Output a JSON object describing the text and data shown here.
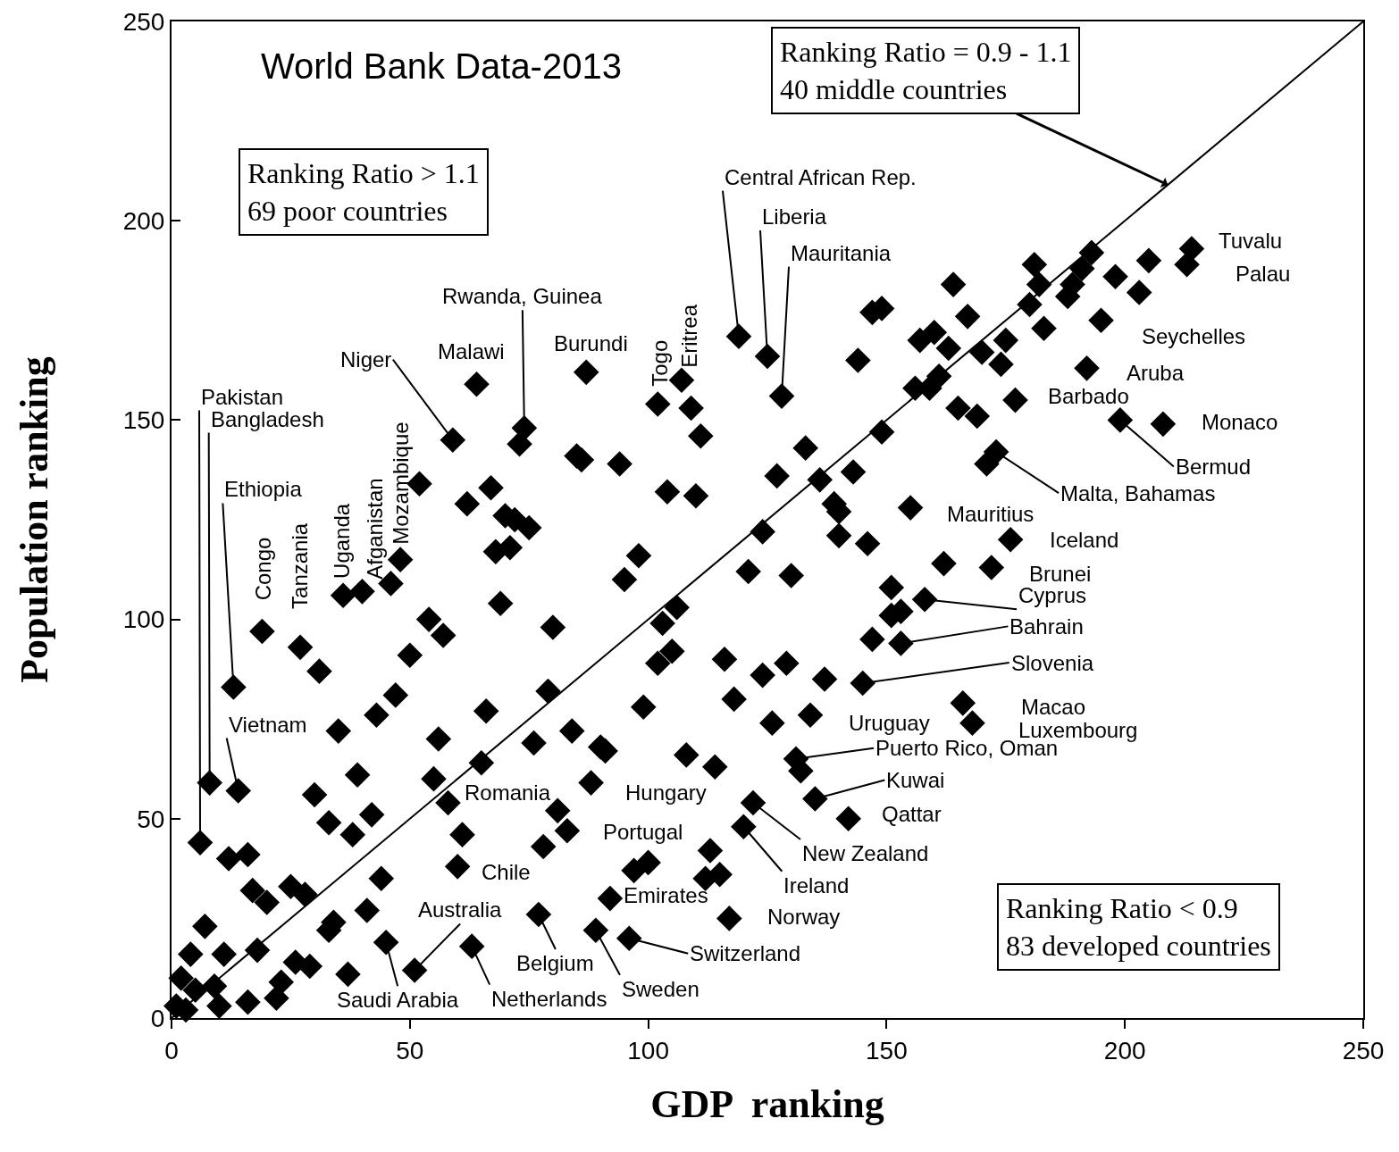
{
  "chart_data": {
    "type": "scatter",
    "xlabel": "GDP  ranking",
    "ylabel": "Population ranking",
    "xlim": [
      0,
      250
    ],
    "ylim": [
      0,
      250
    ],
    "xticks": [
      0,
      50,
      100,
      150,
      200,
      250
    ],
    "yticks": [
      0,
      50,
      100,
      150,
      200,
      250
    ],
    "grid": false,
    "marker": "diamond",
    "series": [
      {
        "color": "#000000",
        "x": [
          64,
          87,
          59,
          74,
          73,
          86,
          85,
          94,
          102,
          107,
          109,
          111,
          104,
          110,
          52,
          67,
          62,
          70,
          72,
          75,
          68,
          71,
          48,
          46,
          36,
          40,
          98,
          95,
          69,
          80,
          106,
          103,
          102,
          105,
          116,
          124,
          19,
          27,
          31,
          54,
          57,
          50,
          13,
          47,
          43,
          35,
          66,
          99,
          118,
          79,
          56,
          76,
          84,
          90,
          91,
          108,
          114,
          39,
          55,
          65,
          8,
          14,
          30,
          42,
          33,
          38,
          58,
          88,
          81,
          83,
          78,
          61,
          60,
          97,
          100,
          113,
          112,
          115,
          6,
          12,
          16,
          17,
          20,
          25,
          28,
          44,
          41,
          34,
          33,
          7,
          4,
          11,
          18,
          26,
          29,
          45,
          37,
          51,
          63,
          77,
          89,
          96,
          92,
          117,
          2,
          5,
          9,
          3,
          1,
          10,
          16,
          22,
          23,
          129,
          137,
          145,
          147,
          153,
          151,
          153,
          166,
          168,
          126,
          134,
          131,
          132,
          135,
          142,
          122,
          120,
          214,
          213,
          205,
          198,
          203,
          195,
          192,
          177,
          199,
          208,
          173,
          171,
          164,
          167,
          149,
          147,
          181,
          182,
          180,
          193,
          191,
          189,
          188,
          183,
          175,
          174,
          170,
          163,
          160,
          157,
          144,
          119,
          125,
          128,
          161,
          156,
          159,
          165,
          169,
          149,
          133,
          127,
          136,
          143,
          139,
          140,
          140,
          146,
          155,
          124,
          121,
          130,
          176,
          162,
          172,
          151,
          158
        ],
        "values": [
          159,
          162,
          145,
          148,
          144,
          140,
          141,
          139,
          154,
          160,
          153,
          146,
          132,
          131,
          134,
          133,
          129,
          126,
          125,
          123,
          117,
          118,
          115,
          109,
          106,
          107,
          116,
          110,
          104,
          98,
          103,
          99,
          89,
          92,
          90,
          86,
          97,
          93,
          87,
          100,
          96,
          91,
          83,
          81,
          76,
          72,
          77,
          78,
          80,
          82,
          70,
          69,
          72,
          68,
          67,
          66,
          63,
          61,
          60,
          64,
          59,
          57,
          56,
          51,
          49,
          46,
          54,
          59,
          52,
          47,
          43,
          46,
          38,
          37,
          39,
          42,
          35,
          36,
          44,
          40,
          41,
          32,
          29,
          33,
          31,
          35,
          27,
          24,
          22,
          23,
          16,
          16,
          17,
          14,
          13,
          19,
          11,
          12,
          18,
          26,
          22,
          20,
          30,
          25,
          10,
          7,
          8,
          2,
          3,
          3,
          4,
          5,
          9,
          89,
          85,
          84,
          95,
          94,
          101,
          102,
          79,
          74,
          74,
          76,
          65,
          62,
          55,
          50,
          54,
          48,
          193,
          189,
          190,
          186,
          182,
          175,
          163,
          155,
          150,
          149,
          142,
          139,
          184,
          176,
          178,
          177,
          189,
          184,
          179,
          192,
          188,
          184,
          181,
          173,
          170,
          164,
          167,
          168,
          172,
          170,
          165,
          171,
          166,
          156,
          161,
          158,
          158,
          153,
          151,
          147,
          143,
          136,
          135,
          137,
          129,
          127,
          121,
          119,
          128,
          122,
          112,
          111,
          120,
          114,
          113,
          108,
          105
        ]
      },
      {
        "type": "line",
        "color": "#000000",
        "marker": "none",
        "x": [
          0,
          250
        ],
        "values": [
          0,
          250
        ]
      }
    ],
    "annotations": [
      "World Bank Data-2013",
      "Ranking Ratio > 1.1\n69 poor countries",
      {
        "text": "Ranking Ratio = 0.9 - 1.1\n40 middle countries",
        "x": 209,
        "y": 209
      },
      "Ranking Ratio < 0.9\n83 developed countries",
      {
        "text": "Pakistan",
        "x": 6,
        "y": 44
      },
      {
        "text": "Bangladesh",
        "x": 8,
        "y": 59
      },
      {
        "text": "Ethiopia",
        "x": 13,
        "y": 83
      },
      {
        "text": "Vietnam",
        "x": 14,
        "y": 57
      },
      {
        "text": "Niger",
        "x": 59,
        "y": 145
      },
      {
        "text": "Rwanda, Guinea",
        "x": 74,
        "y": 148
      },
      {
        "text": "Central African Rep.",
        "x": 119,
        "y": 171
      },
      {
        "text": "Liberia",
        "x": 125,
        "y": 166
      },
      {
        "text": "Mauritania",
        "x": 128,
        "y": 156
      },
      {
        "text": "Bermud",
        "x": 199,
        "y": 150
      },
      {
        "text": "Malta, Bahamas",
        "x": 173,
        "y": 142
      },
      {
        "text": "Cyprus",
        "x": 158,
        "y": 105
      },
      {
        "text": "Bahrain",
        "x": 153,
        "y": 94
      },
      {
        "text": "Slovenia",
        "x": 145,
        "y": 84
      },
      {
        "text": "Puerto Rico, Oman",
        "x": 131,
        "y": 65
      },
      {
        "text": "Kuwai",
        "x": 135,
        "y": 55
      },
      {
        "text": "New Zealand",
        "x": 122,
        "y": 54
      },
      {
        "text": "Ireland",
        "x": 120,
        "y": 48
      },
      {
        "text": "Switzerland",
        "x": 96,
        "y": 20
      },
      {
        "text": "Sweden",
        "x": 89,
        "y": 22
      },
      {
        "text": "Belgium",
        "x": 77,
        "y": 26
      },
      {
        "text": "Netherlands",
        "x": 63,
        "y": 18
      },
      {
        "text": "Saudi Arabia",
        "x": 45,
        "y": 19
      },
      {
        "text": "Australia",
        "x": 51,
        "y": 12
      },
      {
        "text": "Congo",
        "x": 19,
        "y": 97
      },
      {
        "text": "Tanzania",
        "x": 27,
        "y": 93
      },
      {
        "text": "Uganda",
        "x": 36,
        "y": 106
      },
      {
        "text": "Afganistan",
        "x": 40,
        "y": 107
      },
      {
        "text": "Mozambique",
        "x": 48,
        "y": 115
      },
      {
        "text": "Malawi",
        "x": 64,
        "y": 159
      },
      {
        "text": "Burundi",
        "x": 87,
        "y": 162
      },
      {
        "text": "Togo",
        "x": 102,
        "y": 154
      },
      {
        "text": "Eritrea",
        "x": 107,
        "y": 160
      },
      {
        "text": "Tuvalu",
        "x": 214,
        "y": 193
      },
      {
        "text": "Palau",
        "x": 213,
        "y": 189
      },
      {
        "text": "Seychelles",
        "x": 195,
        "y": 175
      },
      {
        "text": "Aruba",
        "x": 192,
        "y": 163
      },
      {
        "text": "Barbado",
        "x": 177,
        "y": 155
      },
      {
        "text": "Monaco",
        "x": 208,
        "y": 149
      },
      {
        "text": "Mauritius",
        "x": 155,
        "y": 128
      },
      {
        "text": "Iceland",
        "x": 176,
        "y": 120
      },
      {
        "text": "Brunei",
        "x": 172,
        "y": 113
      },
      {
        "text": "Macao",
        "x": 166,
        "y": 79
      },
      {
        "text": "Luxembourg",
        "x": 168,
        "y": 74
      },
      {
        "text": "Uruguay",
        "x": 134,
        "y": 76
      },
      {
        "text": "Qattar",
        "x": 142,
        "y": 50
      },
      {
        "text": "Norway",
        "x": 117,
        "y": 25
      },
      {
        "text": "Emirates",
        "x": 92,
        "y": 30
      },
      {
        "text": "Chile",
        "x": 60,
        "y": 38
      },
      {
        "text": "Portugal",
        "x": 83,
        "y": 47
      },
      {
        "text": "Romania",
        "x": 58,
        "y": 54
      },
      {
        "text": "Hungary",
        "x": 88,
        "y": 59
      }
    ]
  }
}
